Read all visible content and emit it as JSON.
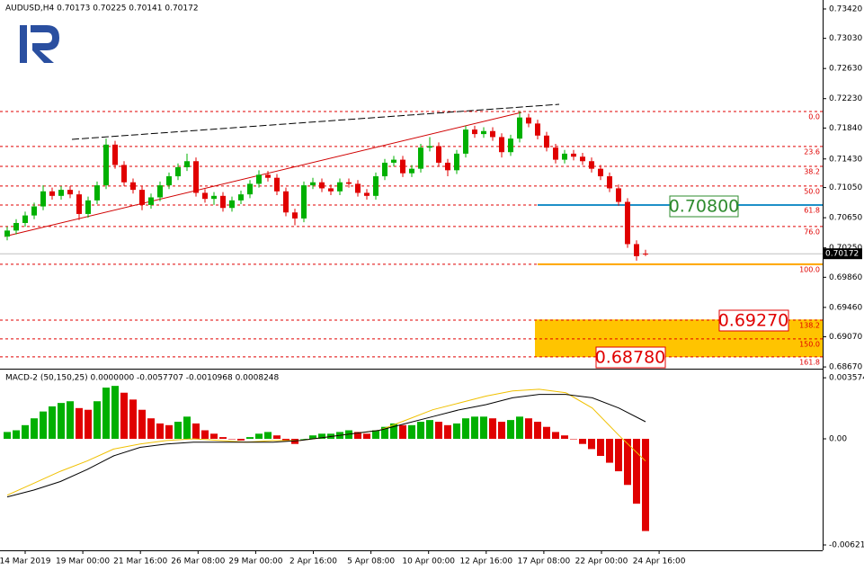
{
  "chart_data": {
    "type": "candlestick",
    "title": "AUDUSD,H4  0.70173 0.70225 0.70141 0.70172",
    "ylim": [
      0.68647,
      0.73539
    ],
    "yticks": [
      {
        "value": 0.7342,
        "label": "0.73420"
      },
      {
        "value": 0.7303,
        "label": "0.73030"
      },
      {
        "value": 0.7263,
        "label": "0.72630"
      },
      {
        "value": 0.7223,
        "label": "0.72230"
      },
      {
        "value": 0.7184,
        "label": "0.71840"
      },
      {
        "value": 0.7143,
        "label": "0.71430"
      },
      {
        "value": 0.7105,
        "label": "0.71050"
      },
      {
        "value": 0.7065,
        "label": "0.70650"
      },
      {
        "value": 0.7025,
        "label": "0.70250"
      },
      {
        "value": 0.6986,
        "label": "0.69860"
      },
      {
        "value": 0.6946,
        "label": "0.69460"
      },
      {
        "value": 0.6907,
        "label": "0.69070"
      },
      {
        "value": 0.6867,
        "label": "0.68670"
      }
    ],
    "current_price": {
      "value": 0.70172,
      "label": "0.70172"
    },
    "up_color": "#00b000",
    "down_color": "#e00000",
    "open": [
      0.704,
      0.7048,
      0.7058,
      0.7068,
      0.708,
      0.71,
      0.7094,
      0.7102,
      0.7096,
      0.707,
      0.7088,
      0.7108,
      0.7162,
      0.7135,
      0.7112,
      0.7102,
      0.7082,
      0.7092,
      0.7108,
      0.712,
      0.7132,
      0.714,
      0.7098,
      0.709,
      0.7094,
      0.7078,
      0.7088,
      0.7096,
      0.711,
      0.7122,
      0.7118,
      0.71,
      0.7072,
      0.7064,
      0.7108,
      0.7112,
      0.7104,
      0.71,
      0.7112,
      0.711,
      0.7098,
      0.7094,
      0.712,
      0.7138,
      0.7142,
      0.7124,
      0.713,
      0.7158,
      0.716,
      0.7138,
      0.7128,
      0.715,
      0.7182,
      0.7176,
      0.718,
      0.7172,
      0.7152,
      0.717,
      0.7198,
      0.719,
      0.7174,
      0.7158,
      0.7142,
      0.715,
      0.7146,
      0.714,
      0.713,
      0.712,
      0.7104,
      0.7086,
      0.703,
      0.70173
    ],
    "high": [
      0.7053,
      0.7063,
      0.7073,
      0.7085,
      0.7108,
      0.7105,
      0.7107,
      0.7107,
      0.7101,
      0.7093,
      0.7113,
      0.717,
      0.7167,
      0.714,
      0.7117,
      0.7107,
      0.7097,
      0.7113,
      0.7125,
      0.7137,
      0.715,
      0.7145,
      0.7103,
      0.7099,
      0.7099,
      0.7093,
      0.7101,
      0.7115,
      0.7128,
      0.7127,
      0.7123,
      0.7105,
      0.7077,
      0.7113,
      0.7118,
      0.7117,
      0.7109,
      0.7117,
      0.7117,
      0.7115,
      0.7103,
      0.7125,
      0.7143,
      0.7147,
      0.7147,
      0.7135,
      0.7163,
      0.7172,
      0.7165,
      0.7143,
      0.7155,
      0.7187,
      0.7187,
      0.7185,
      0.7185,
      0.7177,
      0.7175,
      0.7206,
      0.7203,
      0.7195,
      0.7179,
      0.7163,
      0.7155,
      0.7155,
      0.7151,
      0.7145,
      0.7135,
      0.7125,
      0.7109,
      0.7091,
      0.7035,
      0.70225
    ],
    "low": [
      0.7035,
      0.7043,
      0.7053,
      0.7063,
      0.7075,
      0.7089,
      0.7089,
      0.7091,
      0.7062,
      0.7065,
      0.7083,
      0.7103,
      0.713,
      0.7107,
      0.7097,
      0.7075,
      0.7077,
      0.7087,
      0.7103,
      0.7115,
      0.7127,
      0.7093,
      0.7085,
      0.7082,
      0.7073,
      0.7073,
      0.7083,
      0.7091,
      0.7105,
      0.7113,
      0.7095,
      0.7067,
      0.7055,
      0.7059,
      0.7103,
      0.7099,
      0.7095,
      0.7095,
      0.7105,
      0.7093,
      0.7089,
      0.7089,
      0.7115,
      0.7133,
      0.7119,
      0.7119,
      0.7125,
      0.7153,
      0.7133,
      0.712,
      0.7123,
      0.7145,
      0.7171,
      0.7171,
      0.7167,
      0.7145,
      0.7147,
      0.7165,
      0.7185,
      0.7169,
      0.7153,
      0.7137,
      0.7137,
      0.7141,
      0.7135,
      0.7125,
      0.7115,
      0.7099,
      0.7081,
      0.7025,
      0.7008,
      0.70141
    ],
    "close": [
      0.7048,
      0.7058,
      0.7068,
      0.708,
      0.71,
      0.7094,
      0.7102,
      0.7096,
      0.707,
      0.7088,
      0.7108,
      0.7162,
      0.7135,
      0.7112,
      0.7102,
      0.7082,
      0.7092,
      0.7108,
      0.712,
      0.7132,
      0.714,
      0.7098,
      0.709,
      0.7094,
      0.7078,
      0.7088,
      0.7096,
      0.711,
      0.7122,
      0.7118,
      0.71,
      0.7072,
      0.7064,
      0.7108,
      0.7112,
      0.7104,
      0.71,
      0.7112,
      0.711,
      0.7098,
      0.7094,
      0.712,
      0.7138,
      0.7142,
      0.7124,
      0.713,
      0.7158,
      0.716,
      0.7138,
      0.7128,
      0.715,
      0.7182,
      0.7176,
      0.718,
      0.7172,
      0.7152,
      0.717,
      0.7198,
      0.719,
      0.7174,
      0.7158,
      0.7142,
      0.715,
      0.7146,
      0.714,
      0.713,
      0.712,
      0.7104,
      0.7086,
      0.703,
      0.7014,
      0.70172
    ],
    "fibonacci": {
      "color": "#e00000",
      "labels": [
        "0.0",
        "23.6",
        "38.2",
        "50.0",
        "61.8",
        "76.0",
        "100.0",
        "138.2",
        "150.0",
        "161.8"
      ],
      "prices": [
        0.7206,
        0.71595,
        0.71332,
        0.7107,
        0.70819,
        0.70533,
        0.70032,
        0.69292,
        0.69042,
        0.68803
      ]
    },
    "target_lines": [
      {
        "value": 0.70819,
        "color": "#1e90c8"
      },
      {
        "value": 0.70032,
        "color": "#ffa500"
      }
    ],
    "target_zone": {
      "from": 0.693,
      "to": 0.688,
      "color": "#ffc400"
    },
    "annotations": [
      "0.70800",
      "0.69270",
      "0.68780"
    ],
    "x_labels": [
      "14 Mar 2019",
      "19 Mar 00:00",
      "21 Mar 16:00",
      "26 Mar 08:00",
      "29 Mar 00:00",
      "2 Apr 16:00",
      "5 Apr 08:00",
      "10 Apr 00:00",
      "12 Apr 16:00",
      "17 Apr 08:00",
      "22 Apr 00:00",
      "24 Apr 16:00"
    ],
    "macd": {
      "title": "MACD-2 (50,150,25) 0.0000000 -0.0057707 -0.0010968 0.0008248",
      "ylim": [
        -0.00653,
        0.00395
      ],
      "yticks": [
        0.0035745,
        {
          "value": 0,
          "label": "0.00"
        },
        -0.006215
      ],
      "histogram": [
        0.0004,
        0.0005,
        0.0008,
        0.0012,
        0.0016,
        0.0019,
        0.0021,
        0.0022,
        0.0018,
        0.0017,
        0.0022,
        0.003,
        0.0031,
        0.0027,
        0.0023,
        0.0017,
        0.0012,
        0.0009,
        0.0008,
        0.001,
        0.0013,
        0.0009,
        0.0005,
        0.0003,
        0.0001,
        0.0,
        -0.0001,
        0.0001,
        0.0003,
        0.0004,
        0.0002,
        -0.0001,
        -0.0003,
        0.0,
        0.0002,
        0.0003,
        0.0003,
        0.0004,
        0.0005,
        0.0004,
        0.0003,
        0.0005,
        0.0007,
        0.0009,
        0.0008,
        0.0008,
        0.001,
        0.0011,
        0.001,
        0.0008,
        0.0009,
        0.0012,
        0.0013,
        0.0013,
        0.0012,
        0.001,
        0.0011,
        0.0013,
        0.0012,
        0.001,
        0.0007,
        0.0004,
        0.0002,
        0.0,
        -0.0003,
        -0.0006,
        -0.001,
        -0.0014,
        -0.0019,
        -0.0027,
        -0.0038,
        -0.0054
      ],
      "signal": {
        "color": "#f0c000",
        "values": [
          -0.0033,
          -0.0026,
          -0.0019,
          -0.0013,
          -0.0006,
          -0.0003,
          -0.0001,
          0.0,
          -0.0001,
          -0.0002,
          -0.0001,
          -0.0001,
          0.0001,
          0.0003,
          0.0005,
          0.0011,
          0.0017,
          0.0021,
          0.0025,
          0.0028,
          0.0029,
          0.0027,
          0.0018,
          0.0002,
          -0.0013
        ]
      },
      "main": {
        "color": "#000000",
        "values": [
          -0.0034,
          -0.003,
          -0.0025,
          -0.0018,
          -0.001,
          -0.0005,
          -0.0003,
          -0.0002,
          -0.0002,
          -0.0002,
          -0.0002,
          -0.0001,
          0.0001,
          0.0003,
          0.0005,
          0.0009,
          0.0013,
          0.0017,
          0.002,
          0.0024,
          0.0026,
          0.0026,
          0.0024,
          0.0018,
          0.001
        ]
      }
    }
  }
}
